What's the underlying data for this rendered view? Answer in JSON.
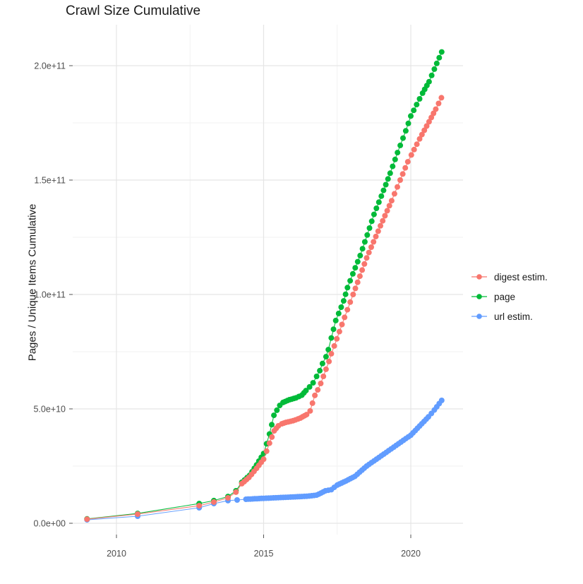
{
  "title": "Crawl Size Cumulative",
  "y_axis": {
    "label": "Pages / Unique Items Cumulative",
    "ticks": [
      "0.0e+00",
      "5.0e+10",
      "1.0e+11",
      "1.5e+11",
      "2.0e+11"
    ],
    "tick_values": [
      0,
      50000000000.0,
      100000000000.0,
      150000000000.0,
      200000000000.0
    ]
  },
  "x_axis": {
    "ticks": [
      "2010",
      "2015",
      "2020"
    ],
    "tick_values": [
      2010,
      2015,
      2020
    ]
  },
  "legend": [
    {
      "label": "digest estim.",
      "color": "#F8766D"
    },
    {
      "label": "page",
      "color": "#00BA38"
    },
    {
      "label": "url estim.",
      "color": "#619CFF"
    }
  ],
  "chart_data": {
    "type": "scatter",
    "title": "Crawl Size Cumulative",
    "xlabel": "",
    "ylabel": "Pages / Unique Items Cumulative",
    "xlim": [
      2008.5,
      2021.8
    ],
    "ylim": [
      -5000000000.0,
      218000000000.0
    ],
    "x_ticks": [
      2010,
      2015,
      2020
    ],
    "x_minor": [
      2012.5,
      2017.5
    ],
    "y_ticks": [
      0,
      50000000000.0,
      100000000000.0,
      150000000000.0,
      200000000000.0
    ],
    "y_minor": [
      25000000000.0,
      75000000000.0,
      125000000000.0,
      175000000000.0
    ],
    "grid": true,
    "legend_position": "right",
    "dense_from_year": 2014.2,
    "dot_interval_years": 0.0833,
    "series": [
      {
        "name": "digest estim.",
        "color": "#F8766D",
        "points": [
          [
            2009.0,
            1800000000.0
          ],
          [
            2010.72,
            4000000000.0
          ],
          [
            2012.81,
            7700000000.0
          ],
          [
            2013.31,
            9300000000.0
          ],
          [
            2013.79,
            11100000000.0
          ],
          [
            2014.06,
            13600000000.0
          ],
          [
            2014.26,
            17300000000.0
          ],
          [
            2014.5,
            20000000000.0
          ],
          [
            2014.76,
            24000000000.0
          ],
          [
            2015.0,
            28000000000.0
          ],
          [
            2015.2,
            35000000000.0
          ],
          [
            2015.36,
            40400000000.0
          ],
          [
            2015.5,
            42600000000.0
          ],
          [
            2015.62,
            43500000000.0
          ],
          [
            2015.76,
            44100000000.0
          ],
          [
            2016.0,
            44800000000.0
          ],
          [
            2016.25,
            46000000000.0
          ],
          [
            2016.46,
            47500000000.0
          ],
          [
            2016.58,
            49100000000.0
          ],
          [
            2016.74,
            55900000000.0
          ],
          [
            2016.84,
            58300000000.0
          ],
          [
            2016.94,
            61100000000.0
          ],
          [
            2017.03,
            64200000000.0
          ],
          [
            2017.12,
            67300000000.0
          ],
          [
            2017.22,
            70700000000.0
          ],
          [
            2017.3,
            74100000000.0
          ],
          [
            2017.4,
            77500000000.0
          ],
          [
            2017.75,
            90000000000.0
          ],
          [
            2018.04,
            100000000000.0
          ],
          [
            2018.5,
            116000000000.0
          ],
          [
            2018.97,
            130000000000.0
          ],
          [
            2019.35,
            141000000000.0
          ],
          [
            2019.64,
            150000000000.0
          ],
          [
            2019.9,
            158000000000.0
          ],
          [
            2020.02,
            161000000000.0
          ],
          [
            2020.3,
            168000000000.0
          ],
          [
            2020.62,
            175500000000.0
          ],
          [
            2020.85,
            181000000000.0
          ],
          [
            2021.04,
            186000000000.0
          ]
        ]
      },
      {
        "name": "page",
        "color": "#00BA38",
        "points": [
          [
            2009.0,
            1900000000.0
          ],
          [
            2010.72,
            4300000000.0
          ],
          [
            2012.81,
            8600000000.0
          ],
          [
            2013.31,
            9900000000.0
          ],
          [
            2013.79,
            11700000000.0
          ],
          [
            2014.06,
            14200000000.0
          ],
          [
            2014.26,
            17900000000.0
          ],
          [
            2014.53,
            21000000000.0
          ],
          [
            2014.76,
            25500000000.0
          ],
          [
            2015.0,
            30500000000.0
          ],
          [
            2015.2,
            39000000000.0
          ],
          [
            2015.35,
            47200000000.0
          ],
          [
            2015.45,
            49400000000.0
          ],
          [
            2015.55,
            51500000000.0
          ],
          [
            2015.66,
            52800000000.0
          ],
          [
            2015.88,
            54000000000.0
          ],
          [
            2016.1,
            54800000000.0
          ],
          [
            2016.3,
            56000000000.0
          ],
          [
            2016.44,
            58000000000.0
          ],
          [
            2016.56,
            59600000000.0
          ],
          [
            2016.68,
            61400000000.0
          ],
          [
            2016.8,
            64200000000.0
          ],
          [
            2016.91,
            66700000000.0
          ],
          [
            2017.0,
            69800000000.0
          ],
          [
            2017.12,
            72800000000.0
          ],
          [
            2017.2,
            75900000000.0
          ],
          [
            2017.3,
            81000000000.0
          ],
          [
            2017.45,
            88600000000.0
          ],
          [
            2017.55,
            91700000000.0
          ],
          [
            2017.72,
            97200000000.0
          ],
          [
            2017.85,
            103000000000.0
          ],
          [
            2018.03,
            109000000000.0
          ],
          [
            2018.28,
            117000000000.0
          ],
          [
            2018.52,
            126000000000.0
          ],
          [
            2018.75,
            135000000000.0
          ],
          [
            2019.0,
            143000000000.0
          ],
          [
            2019.3,
            153000000000.0
          ],
          [
            2019.55,
            162000000000.0
          ],
          [
            2019.83,
            171500000000.0
          ],
          [
            2020.0,
            178000000000.0
          ],
          [
            2020.2,
            183000000000.0
          ],
          [
            2020.4,
            188000000000.0
          ],
          [
            2020.62,
            193000000000.0
          ],
          [
            2020.8,
            198500000000.0
          ],
          [
            2021.05,
            206000000000.0
          ]
        ]
      },
      {
        "name": "url estim.",
        "color": "#619CFF",
        "points": [
          [
            2009.0,
            1500000000.0
          ],
          [
            2010.72,
            3100000000.0
          ],
          [
            2012.81,
            6800000000.0
          ],
          [
            2013.31,
            8600000000.0
          ],
          [
            2013.79,
            9900000000.0
          ],
          [
            2014.1,
            10200000000.0
          ],
          [
            2014.4,
            10500000000.0
          ],
          [
            2014.7,
            10700000000.0
          ],
          [
            2015.0,
            10900000000.0
          ],
          [
            2015.5,
            11200000000.0
          ],
          [
            2016.0,
            11500000000.0
          ],
          [
            2016.3,
            11700000000.0
          ],
          [
            2016.55,
            11900000000.0
          ],
          [
            2016.8,
            12300000000.0
          ],
          [
            2016.95,
            13200000000.0
          ],
          [
            2017.1,
            14200000000.0
          ],
          [
            2017.3,
            14700000000.0
          ],
          [
            2017.5,
            16700000000.0
          ],
          [
            2017.8,
            18500000000.0
          ],
          [
            2018.1,
            20500000000.0
          ],
          [
            2018.5,
            25000000000.0
          ],
          [
            2019.0,
            29500000000.0
          ],
          [
            2019.5,
            34000000000.0
          ],
          [
            2020.0,
            38500000000.0
          ],
          [
            2020.3,
            42500000000.0
          ],
          [
            2020.6,
            46500000000.0
          ],
          [
            2020.8,
            49500000000.0
          ],
          [
            2021.05,
            53700000000.0
          ]
        ]
      }
    ]
  }
}
